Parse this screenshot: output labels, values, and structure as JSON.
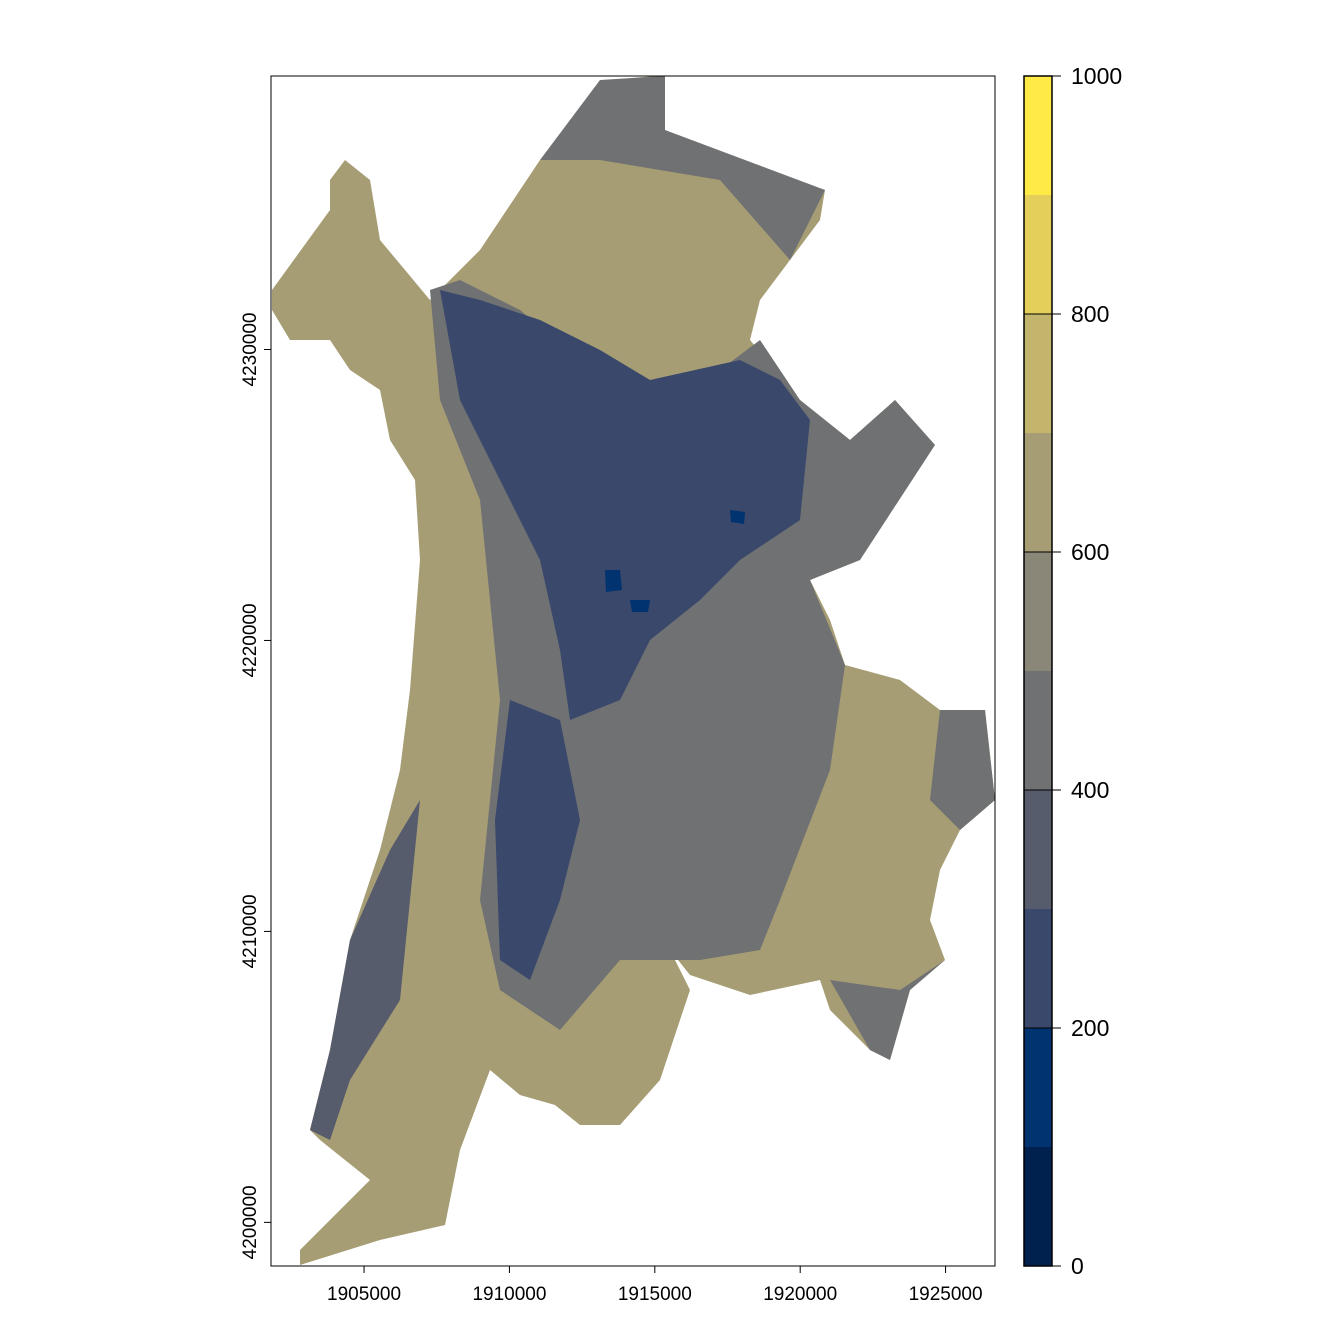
{
  "chart_data": {
    "type": "heatmap",
    "title": "",
    "xlabel": "",
    "ylabel": "",
    "xlim": [
      1901800,
      1926700
    ],
    "ylim": [
      4198500,
      4239400
    ],
    "x_ticks": [
      "1905000",
      "1910000",
      "1915000",
      "1920000",
      "1925000"
    ],
    "x_tick_values": [
      1905000,
      1910000,
      1915000,
      1920000,
      1925000
    ],
    "y_ticks": [
      "4200000",
      "4210000",
      "4220000",
      "4230000"
    ],
    "y_tick_values": [
      4200000,
      4210000,
      4220000,
      4230000
    ],
    "legend": {
      "placement": "right",
      "range": [
        0,
        1000
      ],
      "tick_labels": [
        "0",
        "200",
        "400",
        "600",
        "800",
        "1000"
      ],
      "tick_values": [
        0,
        200,
        400,
        600,
        800,
        1000
      ],
      "breaks": [
        0,
        100,
        200,
        300,
        400,
        500,
        600,
        700,
        800,
        900,
        1000
      ],
      "colors": [
        "#00204D",
        "#00336F",
        "#39486B",
        "#575C6D",
        "#707173",
        "#8A8779",
        "#A69D75",
        "#C4B56C",
        "#E4CF5B",
        "#FFEA46"
      ]
    },
    "dominant_classes": {
      "valley_floor": "#39486B",
      "mid_slopes": "#707173",
      "upper_slopes": "#A69D75",
      "lowest_pockets": "#00336F"
    }
  }
}
